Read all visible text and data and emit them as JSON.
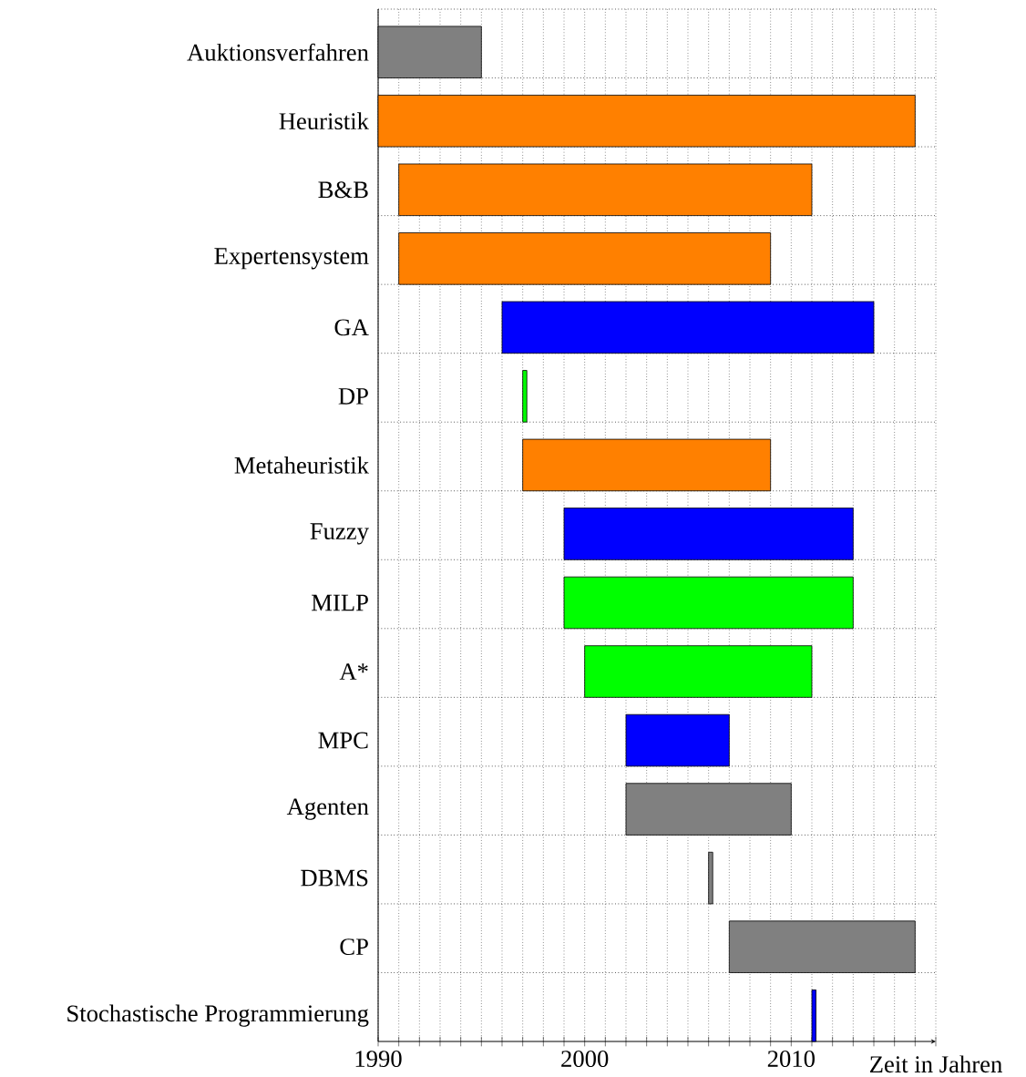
{
  "chart_data": {
    "type": "bar",
    "orientation": "horizontal",
    "xlabel": "Zeit in Jahren",
    "categories": [
      "Auktionsverfahren",
      "Heuristik",
      "B&B",
      "Expertensystem",
      "GA",
      "DP",
      "Metaheuristik",
      "Fuzzy",
      "MILP",
      "A*",
      "MPC",
      "Agenten",
      "DBMS",
      "CP",
      "Stochastische Programmierung"
    ],
    "base": [
      1990,
      1990,
      1991,
      1991,
      1996,
      1997,
      1997,
      1999,
      1999,
      2000,
      2002,
      2002,
      2006,
      2007,
      2011
    ],
    "values": [
      5,
      26,
      20,
      18,
      18,
      0.2,
      12,
      14,
      14,
      11,
      5,
      8,
      0.2,
      9,
      0.2
    ],
    "colors": [
      "#808080",
      "#ff8000",
      "#ff8000",
      "#ff8000",
      "#0000ff",
      "#00ff00",
      "#ff8000",
      "#0000ff",
      "#00ff00",
      "#00ff00",
      "#0000ff",
      "#808080",
      "#808080",
      "#808080",
      "#0000ff"
    ],
    "xlim": [
      1990,
      2017
    ],
    "xticks": [
      1990,
      {
        "value": 1991,
        "label": null
      },
      {
        "value": 1992,
        "label": null
      },
      {
        "value": 1993,
        "label": null
      },
      {
        "value": 1994,
        "label": null
      },
      {
        "value": 1995,
        "label": null
      },
      {
        "value": 1996,
        "label": null
      },
      {
        "value": 1997,
        "label": null
      },
      {
        "value": 1998,
        "label": null
      },
      {
        "value": 1999,
        "label": null
      },
      2000,
      {
        "value": 2001,
        "label": null
      },
      {
        "value": 2002,
        "label": null
      },
      {
        "value": 2003,
        "label": null
      },
      {
        "value": 2004,
        "label": null
      },
      {
        "value": 2005,
        "label": null
      },
      {
        "value": 2006,
        "label": null
      },
      {
        "value": 2007,
        "label": null
      },
      {
        "value": 2008,
        "label": null
      },
      {
        "value": 2009,
        "label": null
      },
      2010,
      {
        "value": 2011,
        "label": null
      },
      {
        "value": 2012,
        "label": null
      },
      {
        "value": 2013,
        "label": null
      },
      {
        "value": 2014,
        "label": null
      },
      {
        "value": 2015,
        "label": null
      },
      {
        "value": 2016,
        "label": null
      },
      {
        "value": 2017,
        "label": null
      }
    ],
    "grid": true
  }
}
